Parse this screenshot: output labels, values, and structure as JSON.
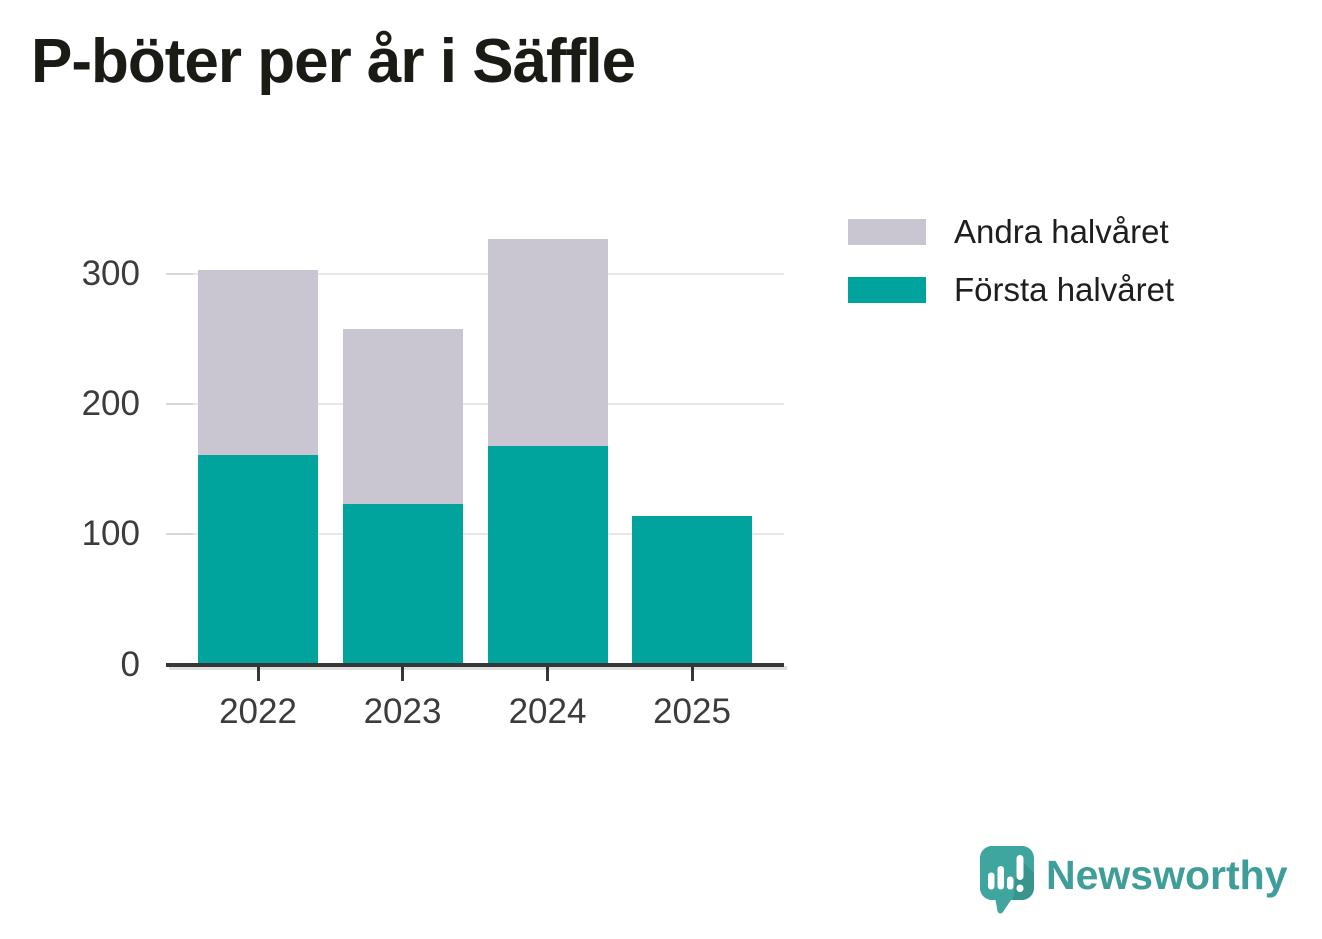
{
  "chart_data": {
    "type": "bar",
    "stacked": true,
    "title": "P-böter per år i Säffle",
    "xlabel": "",
    "ylabel": "",
    "categories": [
      "2022",
      "2023",
      "2024",
      "2025"
    ],
    "series": [
      {
        "name": "Första halvåret",
        "color": "#00a49c",
        "values": [
          161,
          123,
          168,
          114
        ]
      },
      {
        "name": "Andra halvåret",
        "color": "#c9c6d1",
        "values": [
          142,
          135,
          159,
          0
        ]
      }
    ],
    "totals": [
      303,
      258,
      327,
      114
    ],
    "y_ticks": [
      0,
      100,
      200,
      300
    ],
    "ylim": [
      0,
      345
    ],
    "grid": "horizontal",
    "legend_position": "top-right",
    "legend_order": [
      "Andra halvåret",
      "Första halvåret"
    ]
  },
  "colors": {
    "first_half": "#00a49c",
    "second_half": "#c9c6d1",
    "axis_line": "#37373a",
    "grid_line": "#e8e8ea",
    "axis_text": "#3c3c3c",
    "title_text": "#1b1b16",
    "logo_teal": "#3f9e99"
  },
  "branding": {
    "logo_text": "Newsworthy",
    "logo_icon": "newsworthy-speech-bubble-chart-icon"
  }
}
